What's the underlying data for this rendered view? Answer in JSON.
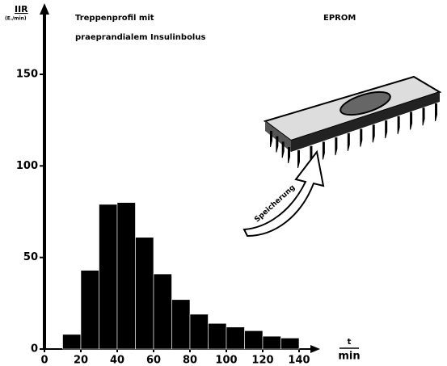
{
  "chart_data": {
    "type": "histogram",
    "title": [
      "Treppenprofil mit",
      "praeprandialem Insulinbolus"
    ],
    "ylabel": "IIR",
    "ylabel_unit": "(E./min)",
    "xlabel": "t",
    "xlabel_unit": "min",
    "annotations": [
      "EPROM",
      "Speicherung"
    ],
    "bins": [
      10,
      20,
      30,
      40,
      50,
      60,
      70,
      80,
      90,
      100,
      110,
      120,
      130,
      140
    ],
    "values": [
      8,
      43,
      79,
      80,
      61,
      41,
      27,
      19,
      14,
      12,
      10,
      7,
      6
    ],
    "color": "#000000",
    "xlim": [
      0,
      140
    ],
    "xticks": [
      0,
      20,
      40,
      60,
      80,
      100,
      120,
      140
    ],
    "ylim": [
      0,
      150
    ],
    "yticks": [
      0,
      50,
      100,
      150
    ]
  }
}
